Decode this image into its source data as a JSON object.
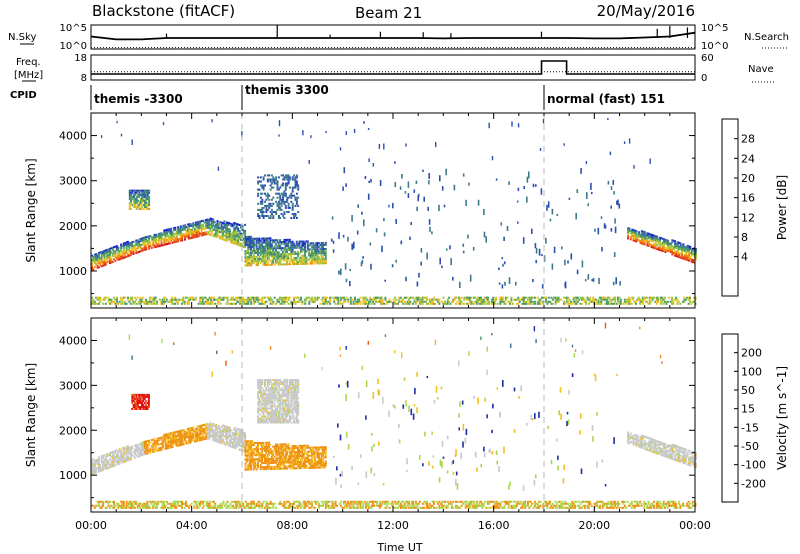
{
  "header": {
    "station": "Blackstone (fitACF)",
    "beam": "Beam 21",
    "date": "20/May/2016"
  },
  "left_labels": {
    "nsky": "N.Sky",
    "freq_top": "Freq.",
    "freq_unit": "[MHz]",
    "cpid": "CPID"
  },
  "right_labels": {
    "nsearch": "N.Search",
    "nave": "Nave"
  },
  "chart_data": [
    {
      "type": "line",
      "panel": "noise",
      "series": [
        {
          "name": "N.Sky",
          "style": "solid",
          "x": [
            0,
            1,
            2,
            3,
            4,
            5,
            6,
            7,
            8,
            9,
            10,
            11,
            12,
            13,
            14,
            15,
            16,
            17,
            18,
            19,
            20,
            21,
            22,
            23,
            24
          ],
          "values": [
            2.6,
            2.0,
            2.0,
            2.3,
            2.3,
            2.3,
            2.3,
            2.3,
            2.3,
            2.3,
            2.3,
            2.3,
            2.3,
            2.3,
            2.2,
            2.3,
            2.3,
            2.3,
            2.3,
            2.3,
            2.2,
            2.2,
            2.4,
            2.6,
            3.4
          ]
        },
        {
          "name": "N.Search",
          "style": "dotted",
          "x": [
            0,
            1,
            2,
            3,
            4,
            5,
            6,
            7,
            8,
            9,
            10,
            11,
            12,
            13,
            14,
            15,
            16,
            17,
            18,
            19,
            20,
            21,
            22,
            23,
            24
          ],
          "values": [
            0.3,
            0.3,
            0.3,
            0.3,
            0.3,
            0.3,
            0.3,
            0.3,
            0.3,
            0.3,
            0.3,
            0.3,
            0.3,
            0.3,
            0.3,
            0.3,
            0.3,
            0.3,
            0.3,
            0.3,
            0.3,
            0.3,
            0.3,
            0.3,
            0.3
          ]
        }
      ],
      "ytick_left": [
        "10^5",
        "10^0"
      ],
      "ytick_right": [
        "10^5",
        "10^0"
      ]
    },
    {
      "type": "line",
      "panel": "frequency",
      "series": [
        {
          "name": "Freq.",
          "style": "solid",
          "x": [
            0,
            17.9,
            17.9,
            18.9,
            18.9,
            24
          ],
          "values": [
            10.4,
            10.4,
            15.6,
            15.6,
            10.4,
            10.4
          ]
        },
        {
          "name": "Nave",
          "style": "dotted",
          "x": [
            0,
            17.9,
            17.9,
            18.9,
            18.9,
            24
          ],
          "values": [
            20,
            20,
            20,
            20,
            20,
            20
          ]
        }
      ],
      "ytick_left": [
        "18",
        "8"
      ],
      "ytick_right": [
        "60",
        "0"
      ]
    },
    {
      "type": "table",
      "panel": "cpid",
      "segments": [
        {
          "start": 0,
          "label": "themis -3300"
        },
        {
          "start": 6,
          "label": "themis 3300"
        },
        {
          "start": 18,
          "label": "normal (fast) 151"
        }
      ]
    },
    {
      "type": "heatmap",
      "panel": "power",
      "ylabel": "Slant Range [km]",
      "yticks": [
        "4000",
        "3000",
        "2000",
        "1000"
      ],
      "ylim": [
        180,
        4500
      ],
      "colorbar_label": "Power [dB]",
      "colorbar_ticks": [
        "28",
        "24",
        "20",
        "16",
        "12",
        "8",
        "4"
      ],
      "colorbar_colors": [
        "#1a1adc",
        "#2b4fb0",
        "#3d7a8a",
        "#4a9a60",
        "#9ac33a",
        "#f0c020",
        "#f08a10",
        "#e84818",
        "#d81818"
      ],
      "echo_regions": [
        {
          "t": [
            0.0,
            2.1
          ],
          "r0": [
            1000,
            1450
          ],
          "r1": [
            1350,
            1750
          ],
          "level": "high"
        },
        {
          "t": [
            2.1,
            4.6
          ],
          "r0": [
            1450,
            1800
          ],
          "r1": [
            1750,
            2150
          ],
          "level": "high"
        },
        {
          "t": [
            4.6,
            6.1
          ],
          "r0": [
            1800,
            1500
          ],
          "r1": [
            2150,
            2000
          ],
          "level": "mid"
        },
        {
          "t": [
            6.1,
            9.3
          ],
          "r0": [
            1100,
            1150
          ],
          "r1": [
            1750,
            1600
          ],
          "level": "mid"
        },
        {
          "t": [
            1.5,
            2.3
          ],
          "r0": [
            2350,
            2350
          ],
          "r1": [
            2800,
            2800
          ],
          "level": "mid"
        },
        {
          "t": [
            6.6,
            8.2
          ],
          "r0": [
            2150,
            2150
          ],
          "r1": [
            3100,
            3100
          ],
          "level": "low"
        },
        {
          "t": [
            21.3,
            24.0
          ],
          "r0": [
            1700,
            1150
          ],
          "r1": [
            1950,
            1500
          ],
          "level": "high"
        },
        {
          "t": [
            0.0,
            24.0
          ],
          "r0": [
            250,
            250
          ],
          "r1": [
            400,
            400
          ],
          "level": "ground"
        }
      ]
    },
    {
      "type": "heatmap",
      "panel": "velocity",
      "ylabel": "Slant Range [km]",
      "yticks": [
        "4000",
        "3000",
        "2000",
        "1000"
      ],
      "ylim": [
        180,
        4500
      ],
      "colorbar_label": "Velocity [m s^-1]",
      "colorbar_ticks": [
        "200",
        "100",
        "50",
        "15",
        "-15",
        "-50",
        "-100",
        "-200"
      ],
      "colorbar_colors": [
        "#1c2ea8",
        "#3e6e8a",
        "#3aa05a",
        "#a8d84c",
        "#c8c8c8",
        "#f0c020",
        "#f09010",
        "#ee5a10",
        "#e01010"
      ],
      "echo_regions": [
        {
          "t": [
            0.0,
            2.1
          ],
          "r0": [
            1000,
            1450
          ],
          "r1": [
            1350,
            1750
          ],
          "level": "grey"
        },
        {
          "t": [
            2.1,
            4.6
          ],
          "r0": [
            1450,
            1800
          ],
          "r1": [
            1750,
            2150
          ],
          "level": "orange"
        },
        {
          "t": [
            4.6,
            6.1
          ],
          "r0": [
            1800,
            1500
          ],
          "r1": [
            2150,
            2000
          ],
          "level": "grey"
        },
        {
          "t": [
            6.1,
            9.3
          ],
          "r0": [
            1100,
            1150
          ],
          "r1": [
            1750,
            1600
          ],
          "level": "orange"
        },
        {
          "t": [
            1.6,
            2.3
          ],
          "r0": [
            2450,
            2450
          ],
          "r1": [
            2800,
            2800
          ],
          "level": "red"
        },
        {
          "t": [
            6.6,
            8.2
          ],
          "r0": [
            2150,
            2150
          ],
          "r1": [
            3100,
            3100
          ],
          "level": "grey"
        },
        {
          "t": [
            21.3,
            24.0
          ],
          "r0": [
            1700,
            1150
          ],
          "r1": [
            1950,
            1500
          ],
          "level": "grey"
        },
        {
          "t": [
            0.0,
            24.0
          ],
          "r0": [
            250,
            250
          ],
          "r1": [
            400,
            400
          ],
          "level": "ground"
        }
      ]
    }
  ],
  "x_axis": {
    "ticks": [
      "00:00",
      "04:00",
      "08:00",
      "12:00",
      "16:00",
      "20:00",
      "00:00"
    ],
    "label": "Time UT",
    "range_hours": [
      0,
      24
    ]
  }
}
